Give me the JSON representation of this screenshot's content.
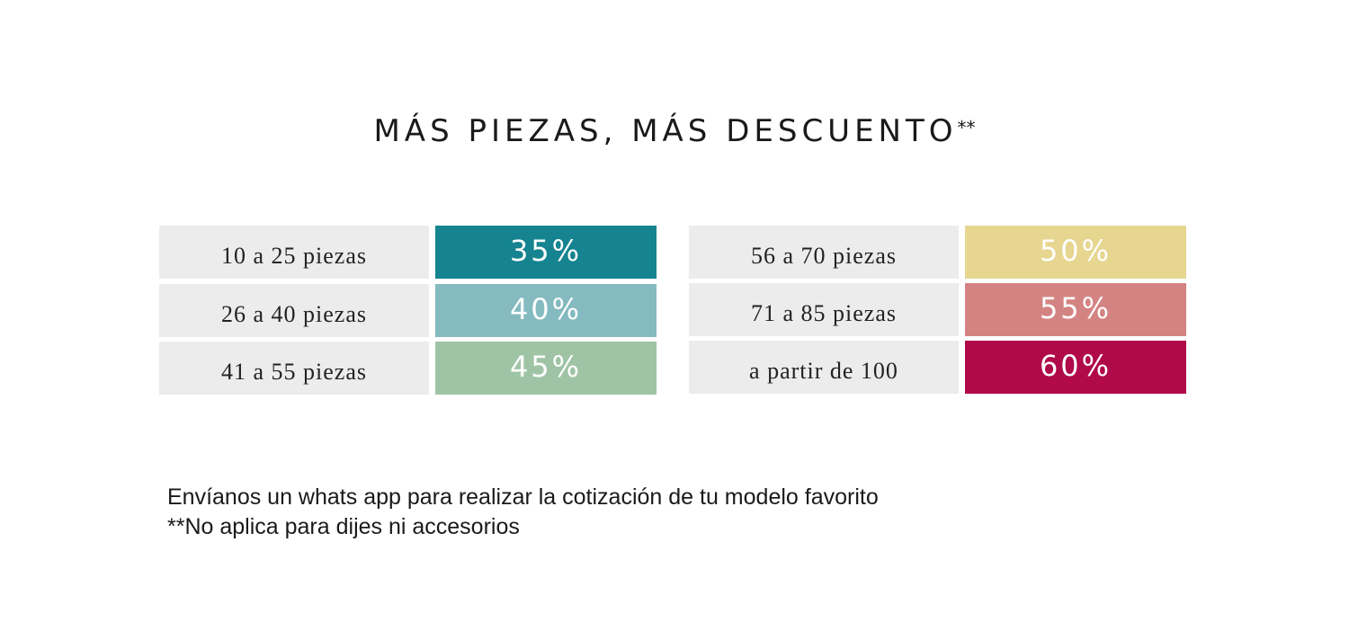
{
  "title": "MÁS PIEZAS, MÁS DESCUENTO",
  "title_mark": "**",
  "tiers": [
    {
      "range": "10 a 25 piezas",
      "discount": "35%",
      "color": "#158490"
    },
    {
      "range": "26 a 40 piezas",
      "discount": "40%",
      "color": "#84bac0"
    },
    {
      "range": "41 a 55 piezas",
      "discount": "45%",
      "color": "#9fc4a5"
    },
    {
      "range": "56 a 70 piezas",
      "discount": "50%",
      "color": "#e6d690"
    },
    {
      "range": "71 a 85 piezas",
      "discount": "55%",
      "color": "#d48383"
    },
    {
      "range": "a partir de 100",
      "discount": "60%",
      "color": "#b00a4b"
    }
  ],
  "footer": {
    "line1": "Envíanos un whats app para realizar la cotización de tu modelo favorito",
    "line2": "**No aplica para dijes ni accesorios"
  }
}
